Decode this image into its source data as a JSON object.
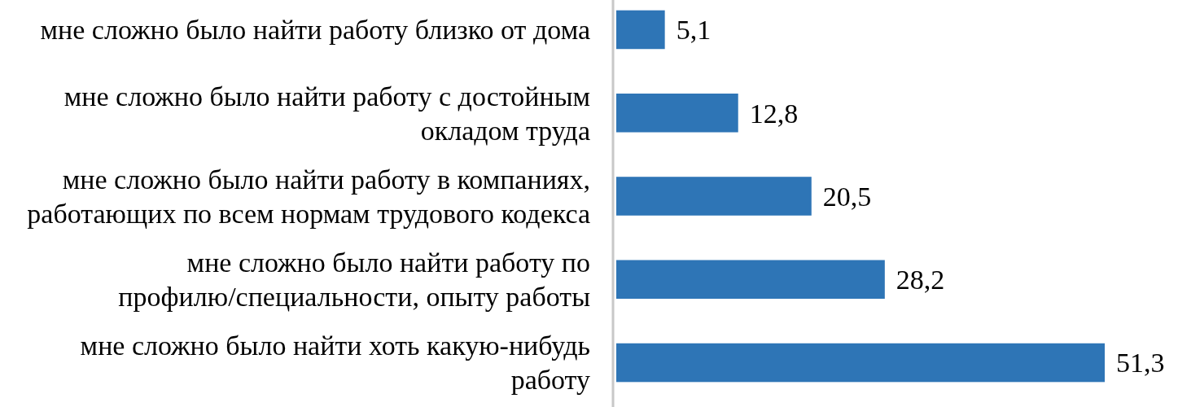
{
  "chart_data": {
    "type": "bar",
    "orientation": "horizontal",
    "value_labels": [
      "5,1",
      "12,8",
      "20,5",
      "28,2",
      "51,3"
    ],
    "categories": [
      "мне сложно было найти работу близко от дома",
      "мне сложно было найти работу с достойным окладом труда",
      "мне сложно было найти работу в компаниях, работающих по всем нормам трудового кодекса",
      "мне сложно было найти работу по профилю/специальности, опыту работы",
      "мне сложно было найти хоть какую-нибудь работу"
    ],
    "values": [
      5.1,
      12.8,
      20.5,
      28.2,
      51.3
    ],
    "color": "#2e75b6"
  }
}
